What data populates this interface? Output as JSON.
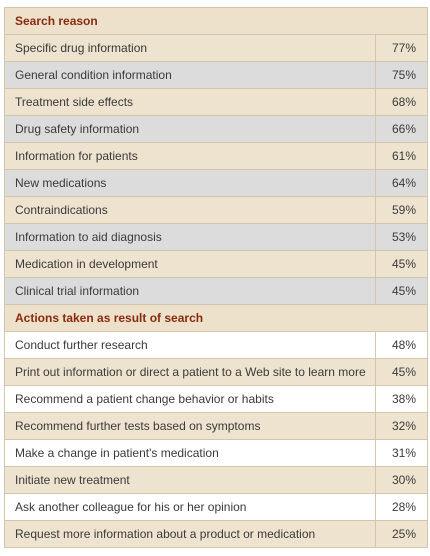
{
  "sections": [
    {
      "heading": "Search reason",
      "rows": [
        {
          "label": "Specific drug information",
          "value": "77%"
        },
        {
          "label": "General condition information",
          "value": "75%"
        },
        {
          "label": "Treatment side effects",
          "value": "68%"
        },
        {
          "label": "Drug safety information",
          "value": "66%"
        },
        {
          "label": "Information for patients",
          "value": "61%"
        },
        {
          "label": "New medications",
          "value": "64%"
        },
        {
          "label": "Contraindications",
          "value": "59%"
        },
        {
          "label": "Information to aid diagnosis",
          "value": "53%"
        },
        {
          "label": "Medication in development",
          "value": "45%"
        },
        {
          "label": "Clinical trial information",
          "value": "45%"
        }
      ]
    },
    {
      "heading": "Actions taken as result of search",
      "rows": [
        {
          "label": "Conduct further research",
          "value": "48%"
        },
        {
          "label": "Print out information or direct a patient to a Web site to learn more",
          "value": "45%"
        },
        {
          "label": "Recommend a patient change behavior or habits",
          "value": "38%"
        },
        {
          "label": "Recommend further tests based on symptoms",
          "value": "32%"
        },
        {
          "label": "Make a change in patient's medication",
          "value": "31%"
        },
        {
          "label": "Initiate new treatment",
          "value": "30%"
        },
        {
          "label": "Ask another colleague for his or her opinion",
          "value": "28%"
        },
        {
          "label": "Request more information about a product or medication",
          "value": "25%"
        }
      ]
    }
  ],
  "colors": {
    "heading_bg": "#ede1cb",
    "heading_text": "#8a2a10",
    "beige_row": "#eee3cf",
    "gray_row": "#dcdcdc",
    "white_row": "#ffffff",
    "border": "#d4c6ad"
  }
}
